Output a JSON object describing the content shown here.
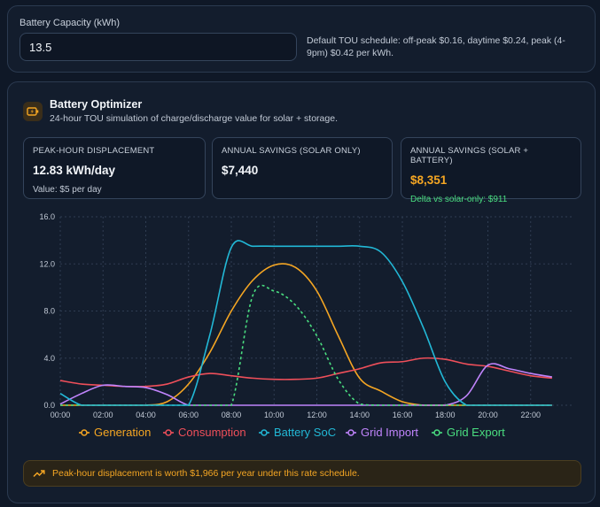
{
  "battery_capacity": {
    "label": "Battery Capacity (kWh)",
    "value": "13.5",
    "note": "Default TOU schedule: off-peak $0.16, daytime $0.24, peak (4-9pm) $0.42 per kWh."
  },
  "optimizer": {
    "icon": "battery-icon",
    "title": "Battery Optimizer",
    "subtitle": "24-hour TOU simulation of charge/discharge value for solar + storage.",
    "stats": [
      {
        "label": "PEAK-HOUR DISPLACEMENT",
        "value": "12.83 kWh/day",
        "note": "Value: $5 per day"
      },
      {
        "label": "ANNUAL SAVINGS (SOLAR ONLY)",
        "value": "$7,440",
        "note": ""
      },
      {
        "label": "ANNUAL SAVINGS (SOLAR + BATTERY)",
        "value": "$8,351",
        "note": "Delta vs solar-only: $911"
      }
    ],
    "insight": "Peak-hour displacement is worth $1,966 per year under this rate schedule.",
    "insight_icon": "trending-up-icon"
  },
  "colors": {
    "generation": "#f5a623",
    "consumption": "#ef4f5a",
    "battery_soc": "#22b8d6",
    "grid_import": "#c084fc",
    "grid_export": "#4ade80"
  },
  "chart_data": {
    "type": "line",
    "x": [
      0,
      1,
      2,
      3,
      4,
      5,
      6,
      7,
      8,
      9,
      10,
      11,
      12,
      13,
      14,
      15,
      16,
      17,
      18,
      19,
      20,
      21,
      22,
      23
    ],
    "x_tick_labels": [
      "00:00",
      "02:00",
      "04:00",
      "06:00",
      "08:00",
      "10:00",
      "12:00",
      "14:00",
      "16:00",
      "18:00",
      "20:00",
      "22:00"
    ],
    "ylim": [
      0,
      16
    ],
    "y_ticks": [
      "0.0",
      "4.0",
      "8.0",
      "12.0",
      "16.0"
    ],
    "grid": true,
    "legend_position": "bottom",
    "series": [
      {
        "name": "Generation",
        "values": [
          0,
          0,
          0,
          0,
          0,
          0.3,
          1.8,
          4.5,
          8.0,
          10.6,
          11.9,
          11.7,
          9.7,
          5.9,
          2.3,
          1.2,
          0.3,
          0,
          0,
          0,
          0,
          0,
          0,
          0
        ]
      },
      {
        "name": "Consumption",
        "values": [
          2.1,
          1.8,
          1.7,
          1.6,
          1.6,
          1.8,
          2.4,
          2.7,
          2.5,
          2.3,
          2.2,
          2.2,
          2.3,
          2.7,
          3.1,
          3.6,
          3.7,
          4.0,
          3.9,
          3.5,
          3.3,
          2.9,
          2.5,
          2.3
        ]
      },
      {
        "name": "Battery SoC",
        "values": [
          1.0,
          0,
          0,
          0,
          0,
          0,
          0,
          6.0,
          13.4,
          13.5,
          13.5,
          13.5,
          13.5,
          13.5,
          13.5,
          13.0,
          10.5,
          6.5,
          2.0,
          0,
          0,
          0,
          0,
          0
        ]
      },
      {
        "name": "Grid Import",
        "values": [
          0.1,
          1.0,
          1.7,
          1.6,
          1.5,
          0.9,
          0,
          0,
          0,
          0,
          0,
          0,
          0,
          0,
          0,
          0,
          0,
          0,
          0,
          0.8,
          3.4,
          3.1,
          2.7,
          2.4
        ]
      },
      {
        "name": "Grid Export",
        "values": [
          0,
          0,
          0,
          0,
          0,
          0,
          0,
          0,
          0,
          9.3,
          9.7,
          8.5,
          5.9,
          2.2,
          0.1,
          0,
          0,
          0,
          0,
          0,
          0,
          0,
          0,
          0
        ]
      }
    ]
  }
}
